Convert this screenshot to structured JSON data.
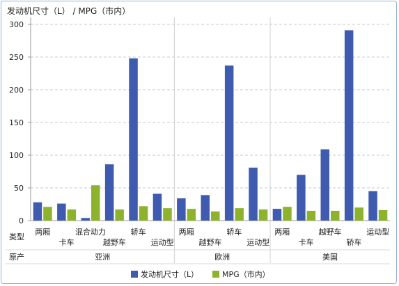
{
  "chart_data": {
    "type": "bar",
    "title": "发动机尺寸（L） / MPG（市内）",
    "row_labels": {
      "type": "类型",
      "origin": "原产"
    },
    "ylim": [
      0,
      300
    ],
    "yticks": [
      0,
      50,
      100,
      150,
      200,
      250,
      300
    ],
    "grid": true,
    "legend_position": "bottom",
    "series": [
      {
        "name": "发动机尺寸（L）",
        "color": "#3f5bb0"
      },
      {
        "name": "MPG（市内）",
        "color": "#8db32c"
      }
    ],
    "groups": [
      {
        "origin": "亚洲",
        "categories": [
          {
            "label": "两厢",
            "values": [
              28,
              21
            ]
          },
          {
            "label": "卡车",
            "values": [
              26,
              17
            ]
          },
          {
            "label": "混合动力",
            "values": [
              4,
              54
            ]
          },
          {
            "label": "越野车",
            "values": [
              86,
              17
            ]
          },
          {
            "label": "轿车",
            "values": [
              248,
              22
            ]
          },
          {
            "label": "运动型",
            "values": [
              41,
              19
            ]
          }
        ]
      },
      {
        "origin": "欧洲",
        "categories": [
          {
            "label": "两厢",
            "values": [
              34,
              18
            ]
          },
          {
            "label": "越野车",
            "values": [
              39,
              14
            ]
          },
          {
            "label": "轿车",
            "values": [
              237,
              19
            ]
          },
          {
            "label": "运动型",
            "values": [
              81,
              17
            ]
          }
        ]
      },
      {
        "origin": "美国",
        "categories": [
          {
            "label": "两厢",
            "values": [
              18,
              21
            ]
          },
          {
            "label": "卡车",
            "values": [
              70,
              15
            ]
          },
          {
            "label": "越野车",
            "values": [
              109,
              15
            ]
          },
          {
            "label": "轿车",
            "values": [
              291,
              20
            ]
          },
          {
            "label": "运动型",
            "values": [
              45,
              16
            ]
          }
        ]
      }
    ]
  }
}
